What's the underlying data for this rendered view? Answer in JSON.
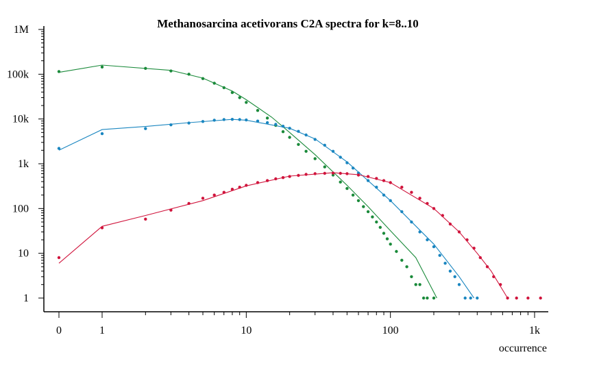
{
  "chart_data": {
    "type": "scatter",
    "title": "Methanosarcina acetivorans C2A spectra for k=8..10",
    "xlabel": "occurrence",
    "ylabel": "",
    "x_scale": "log (with 0 shown at left)",
    "y_scale": "log",
    "xlim": [
      0,
      1300
    ],
    "ylim": [
      1,
      1000000
    ],
    "x_ticks": [
      {
        "value": 0,
        "label": "0"
      },
      {
        "value": 1,
        "label": "1"
      },
      {
        "value": 10,
        "label": "10"
      },
      {
        "value": 100,
        "label": "100"
      },
      {
        "value": 1000,
        "label": "1k"
      }
    ],
    "y_ticks": [
      {
        "value": 1,
        "label": "1"
      },
      {
        "value": 10,
        "label": "10"
      },
      {
        "value": 100,
        "label": "100"
      },
      {
        "value": 1000,
        "label": "1k"
      },
      {
        "value": 10000,
        "label": "10k"
      },
      {
        "value": 100000,
        "label": "100k"
      },
      {
        "value": 1000000,
        "label": "1M"
      }
    ],
    "grid": false,
    "legend": "none",
    "series": [
      {
        "color": "#1a8a3a",
        "points": [
          [
            0,
            115000
          ],
          [
            1,
            145000
          ],
          [
            2,
            135000
          ],
          [
            3,
            118000
          ],
          [
            4,
            100000
          ],
          [
            5,
            80000
          ],
          [
            6,
            63000
          ],
          [
            7,
            50000
          ],
          [
            8,
            39000
          ],
          [
            9,
            30000
          ],
          [
            10,
            23500
          ],
          [
            12,
            15500
          ],
          [
            14,
            10500
          ],
          [
            16,
            7200
          ],
          [
            18,
            5200
          ],
          [
            20,
            3900
          ],
          [
            23,
            2700
          ],
          [
            26,
            1900
          ],
          [
            30,
            1300
          ],
          [
            35,
            850
          ],
          [
            40,
            560
          ],
          [
            45,
            390
          ],
          [
            50,
            280
          ],
          [
            55,
            200
          ],
          [
            60,
            150
          ],
          [
            65,
            110
          ],
          [
            70,
            85
          ],
          [
            75,
            65
          ],
          [
            80,
            50
          ],
          [
            85,
            38
          ],
          [
            90,
            28
          ],
          [
            95,
            21
          ],
          [
            100,
            16
          ],
          [
            110,
            11
          ],
          [
            120,
            7
          ],
          [
            130,
            5
          ],
          [
            140,
            3
          ],
          [
            150,
            2
          ],
          [
            160,
            2
          ],
          [
            170,
            1
          ],
          [
            180,
            1
          ],
          [
            200,
            1
          ]
        ],
        "fit": [
          [
            0,
            110000
          ],
          [
            1,
            160000
          ],
          [
            3,
            122000
          ],
          [
            5,
            82000
          ],
          [
            8,
            42000
          ],
          [
            10,
            27000
          ],
          [
            15,
            11000
          ],
          [
            20,
            5000
          ],
          [
            30,
            1600
          ],
          [
            50,
            330
          ],
          [
            70,
            110
          ],
          [
            100,
            32
          ],
          [
            150,
            8
          ],
          [
            210,
            1
          ]
        ]
      },
      {
        "color": "#1a86c0",
        "points": [
          [
            0,
            2200
          ],
          [
            1,
            4700
          ],
          [
            2,
            6100
          ],
          [
            3,
            7400
          ],
          [
            4,
            8100
          ],
          [
            5,
            8800
          ],
          [
            6,
            9400
          ],
          [
            7,
            9700
          ],
          [
            8,
            9800
          ],
          [
            9,
            9700
          ],
          [
            10,
            9500
          ],
          [
            12,
            9000
          ],
          [
            14,
            8300
          ],
          [
            16,
            7600
          ],
          [
            18,
            6900
          ],
          [
            20,
            6200
          ],
          [
            23,
            5300
          ],
          [
            26,
            4400
          ],
          [
            30,
            3500
          ],
          [
            35,
            2600
          ],
          [
            40,
            1900
          ],
          [
            45,
            1400
          ],
          [
            50,
            1050
          ],
          [
            55,
            800
          ],
          [
            60,
            620
          ],
          [
            70,
            420
          ],
          [
            80,
            300
          ],
          [
            90,
            200
          ],
          [
            100,
            150
          ],
          [
            120,
            85
          ],
          [
            140,
            50
          ],
          [
            160,
            30
          ],
          [
            180,
            20
          ],
          [
            200,
            14
          ],
          [
            220,
            9
          ],
          [
            240,
            6
          ],
          [
            260,
            4
          ],
          [
            280,
            3
          ],
          [
            300,
            2
          ],
          [
            330,
            1
          ],
          [
            360,
            1
          ],
          [
            400,
            1
          ]
        ],
        "fit": [
          [
            0,
            2000
          ],
          [
            1,
            5800
          ],
          [
            2,
            6800
          ],
          [
            4,
            8300
          ],
          [
            8,
            9800
          ],
          [
            10,
            9400
          ],
          [
            20,
            6200
          ],
          [
            30,
            3600
          ],
          [
            50,
            1100
          ],
          [
            100,
            150
          ],
          [
            200,
            16
          ],
          [
            300,
            3
          ],
          [
            380,
            1
          ]
        ]
      },
      {
        "color": "#d0143c",
        "points": [
          [
            0,
            8
          ],
          [
            1,
            37
          ],
          [
            2,
            58
          ],
          [
            3,
            92
          ],
          [
            4,
            130
          ],
          [
            5,
            170
          ],
          [
            6,
            200
          ],
          [
            7,
            230
          ],
          [
            8,
            270
          ],
          [
            9,
            300
          ],
          [
            10,
            330
          ],
          [
            12,
            380
          ],
          [
            14,
            420
          ],
          [
            16,
            460
          ],
          [
            18,
            490
          ],
          [
            20,
            520
          ],
          [
            23,
            550
          ],
          [
            26,
            580
          ],
          [
            30,
            600
          ],
          [
            35,
            610
          ],
          [
            40,
            620
          ],
          [
            45,
            610
          ],
          [
            50,
            600
          ],
          [
            60,
            560
          ],
          [
            70,
            520
          ],
          [
            80,
            470
          ],
          [
            90,
            420
          ],
          [
            100,
            380
          ],
          [
            120,
            300
          ],
          [
            140,
            230
          ],
          [
            160,
            170
          ],
          [
            180,
            130
          ],
          [
            200,
            100
          ],
          [
            230,
            70
          ],
          [
            260,
            45
          ],
          [
            300,
            30
          ],
          [
            340,
            20
          ],
          [
            380,
            13
          ],
          [
            420,
            8
          ],
          [
            470,
            5
          ],
          [
            520,
            3
          ],
          [
            580,
            2
          ],
          [
            650,
            1
          ],
          [
            750,
            1
          ],
          [
            900,
            1
          ],
          [
            1100,
            1
          ]
        ],
        "fit": [
          [
            0,
            6
          ],
          [
            1,
            40
          ],
          [
            2,
            70
          ],
          [
            5,
            150
          ],
          [
            10,
            320
          ],
          [
            20,
            530
          ],
          [
            40,
            630
          ],
          [
            60,
            570
          ],
          [
            100,
            380
          ],
          [
            200,
            100
          ],
          [
            300,
            30
          ],
          [
            400,
            10
          ],
          [
            500,
            4
          ],
          [
            650,
            1
          ]
        ]
      }
    ]
  }
}
